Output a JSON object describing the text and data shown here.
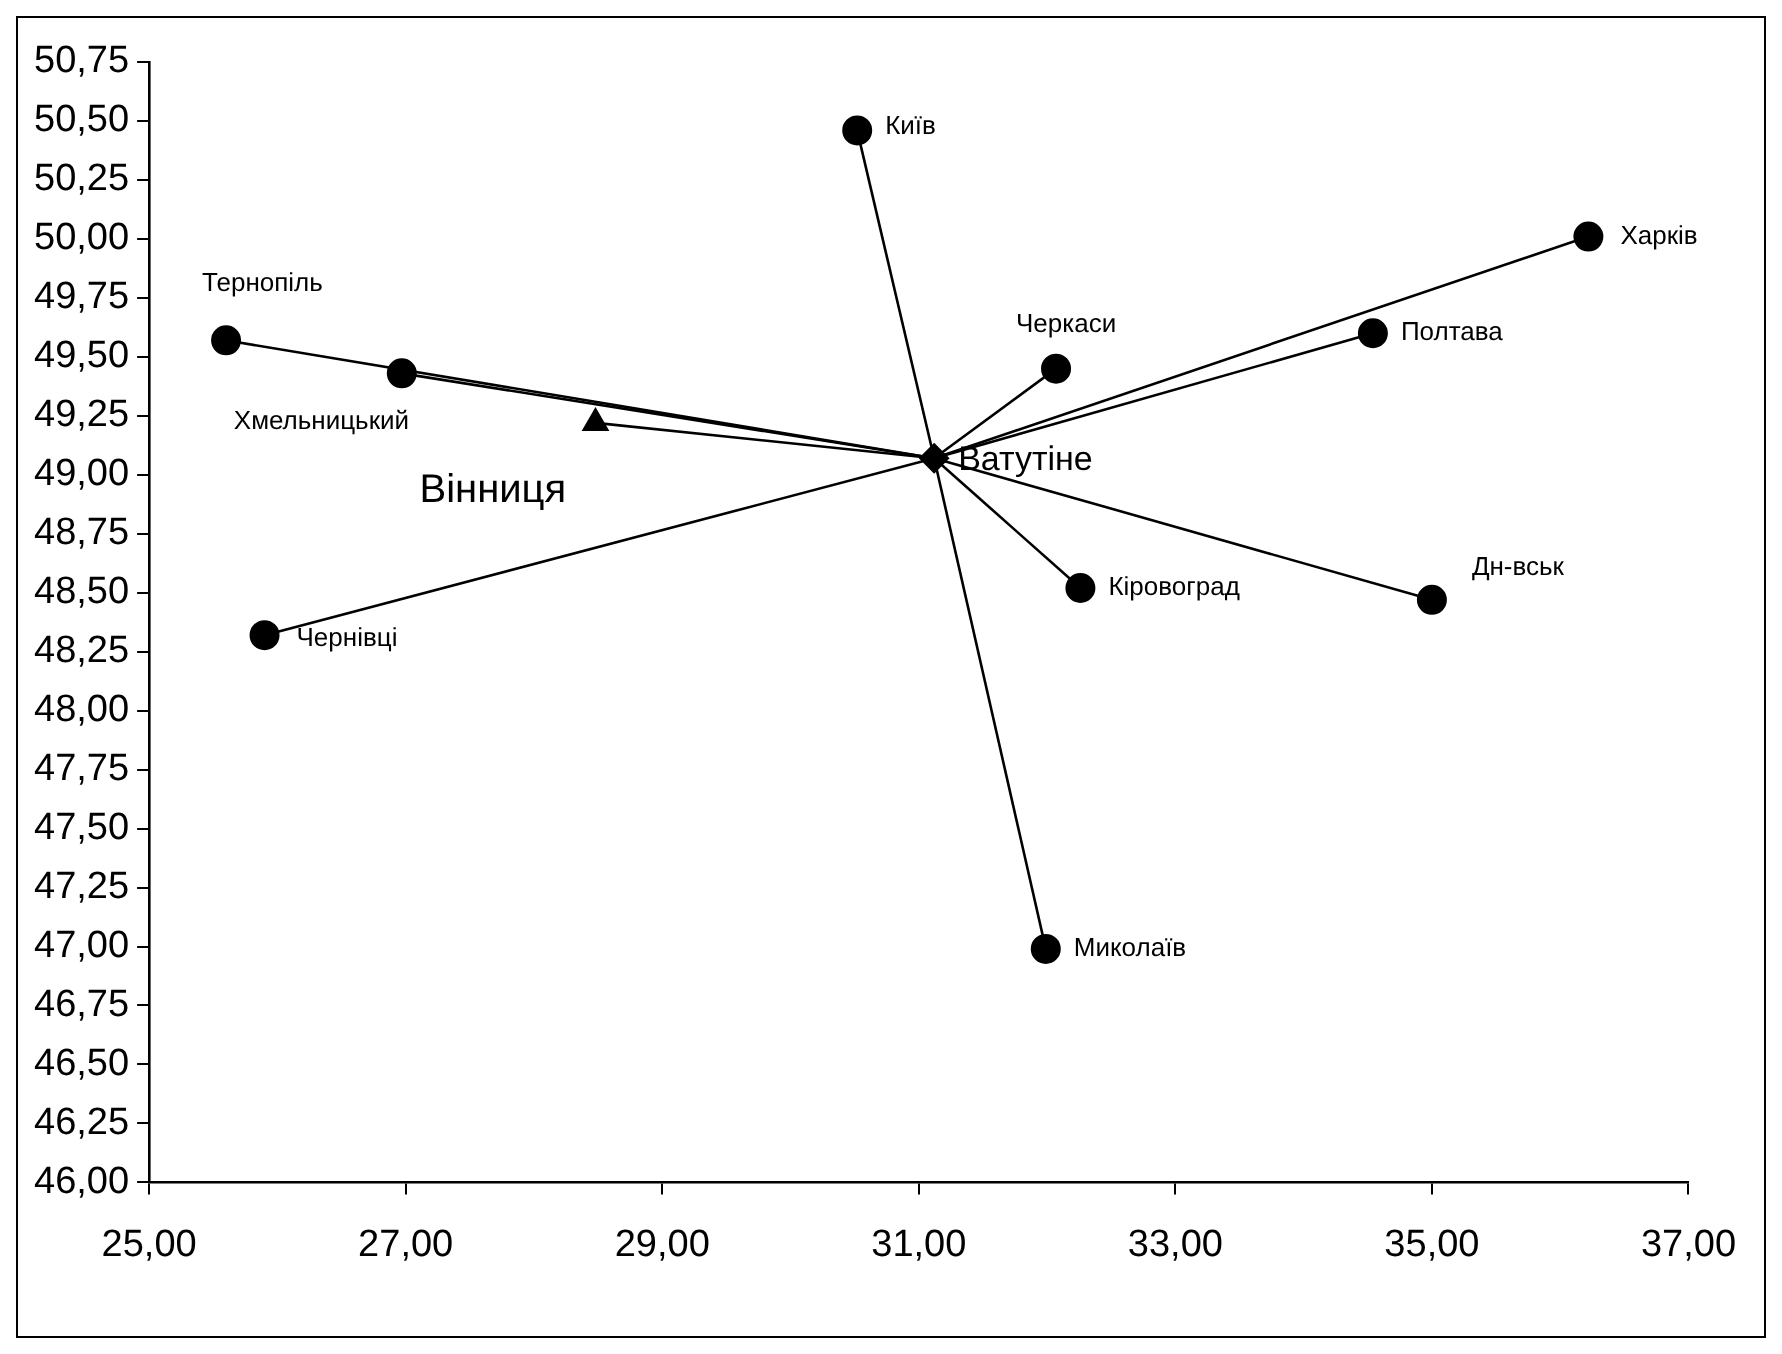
{
  "chart_data": {
    "type": "scatter",
    "xlim": [
      25,
      37
    ],
    "ylim": [
      46,
      50.75
    ],
    "xticks": [
      {
        "value": 25,
        "label": "25,00"
      },
      {
        "value": 27,
        "label": "27,00"
      },
      {
        "value": 29,
        "label": "29,00"
      },
      {
        "value": 31,
        "label": "31,00"
      },
      {
        "value": 33,
        "label": "33,00"
      },
      {
        "value": 35,
        "label": "35,00"
      },
      {
        "value": 37,
        "label": "37,00"
      }
    ],
    "yticks": [
      {
        "value": 46,
        "label": "46,00"
      },
      {
        "value": 46.25,
        "label": "46,25"
      },
      {
        "value": 46.5,
        "label": "46,50"
      },
      {
        "value": 46.75,
        "label": "46,75"
      },
      {
        "value": 47,
        "label": "47,00"
      },
      {
        "value": 47.25,
        "label": "47,25"
      },
      {
        "value": 47.5,
        "label": "47,50"
      },
      {
        "value": 47.75,
        "label": "47,75"
      },
      {
        "value": 48,
        "label": "48,00"
      },
      {
        "value": 48.25,
        "label": "48,25"
      },
      {
        "value": 48.5,
        "label": "48,50"
      },
      {
        "value": 48.75,
        "label": "48,75"
      },
      {
        "value": 49,
        "label": "49,00"
      },
      {
        "value": 49.25,
        "label": "49,25"
      },
      {
        "value": 49.5,
        "label": "49,50"
      },
      {
        "value": 49.75,
        "label": "49,75"
      },
      {
        "value": 50,
        "label": "50,00"
      },
      {
        "value": 50.25,
        "label": "50,25"
      },
      {
        "value": 50.5,
        "label": "50,50"
      },
      {
        "value": 50.75,
        "label": "50,75"
      }
    ],
    "grid": false,
    "legend": false,
    "series": [
      {
        "type": "line",
        "color": "#000000",
        "marker": "none",
        "x": [
          31.12,
          30.52
        ],
        "values": [
          49.07,
          50.46
        ]
      },
      {
        "type": "line",
        "color": "#000000",
        "marker": "none",
        "x": [
          31.12,
          36.22
        ],
        "values": [
          49.07,
          50.01
        ]
      },
      {
        "type": "line",
        "color": "#000000",
        "marker": "none",
        "x": [
          31.12,
          34.54
        ],
        "values": [
          49.07,
          49.6
        ]
      },
      {
        "type": "line",
        "color": "#000000",
        "marker": "none",
        "x": [
          31.12,
          32.07
        ],
        "values": [
          49.07,
          49.45
        ]
      },
      {
        "type": "line",
        "color": "#000000",
        "marker": "none",
        "x": [
          31.12,
          25.6
        ],
        "values": [
          49.07,
          49.57
        ]
      },
      {
        "type": "line",
        "color": "#000000",
        "marker": "none",
        "x": [
          31.12,
          26.97
        ],
        "values": [
          49.07,
          49.43
        ]
      },
      {
        "type": "line",
        "color": "#000000",
        "marker": "none",
        "x": [
          31.12,
          25.9
        ],
        "values": [
          49.07,
          48.32
        ]
      },
      {
        "type": "line",
        "color": "#000000",
        "marker": "none",
        "x": [
          31.12,
          32.26
        ],
        "values": [
          49.07,
          48.52
        ]
      },
      {
        "type": "line",
        "color": "#000000",
        "marker": "none",
        "x": [
          31.12,
          35.0
        ],
        "values": [
          49.07,
          48.47
        ]
      },
      {
        "type": "line",
        "color": "#000000",
        "marker": "none",
        "x": [
          31.12,
          31.99
        ],
        "values": [
          49.07,
          46.99
        ]
      },
      {
        "type": "line",
        "color": "#000000",
        "marker": "none",
        "x": [
          31.12,
          28.48
        ],
        "values": [
          49.07,
          49.22
        ]
      },
      {
        "type": "scatter",
        "color": "#000000",
        "marker": "circle",
        "x": [
          30.52,
          36.22,
          34.54,
          32.07,
          25.6,
          26.97,
          25.9,
          32.26,
          35.0,
          31.99
        ],
        "values": [
          50.46,
          50.01,
          49.6,
          49.45,
          49.57,
          49.43,
          48.32,
          48.52,
          48.47,
          46.99
        ]
      },
      {
        "type": "scatter",
        "color": "#000000",
        "marker": "triangle",
        "x": [
          28.48
        ],
        "values": [
          49.22
        ]
      },
      {
        "type": "scatter",
        "color": "#000000",
        "marker": "diamond",
        "x": [
          31.12
        ],
        "values": [
          49.07
        ]
      }
    ],
    "annotations": [
      {
        "text": "Київ",
        "x": 30.52,
        "y": 50.46
      },
      {
        "text": "Харків",
        "x": 36.22,
        "y": 50.01
      },
      {
        "text": "Полтава",
        "x": 34.54,
        "y": 49.6
      },
      {
        "text": "Черкаси",
        "x": 32.07,
        "y": 49.45
      },
      {
        "text": "Тернопіль",
        "x": 25.6,
        "y": 49.57
      },
      {
        "text": "Хмельницький",
        "x": 26.97,
        "y": 49.43
      },
      {
        "text": "Чернівці",
        "x": 25.9,
        "y": 48.32
      },
      {
        "text": "Кіровоград",
        "x": 32.26,
        "y": 48.52
      },
      {
        "text": "Дн-вськ",
        "x": 35.0,
        "y": 48.47
      },
      {
        "text": "Миколаїв",
        "x": 31.99,
        "y": 46.99
      },
      {
        "text": "Вінниця",
        "x": 28.48,
        "y": 49.22
      },
      {
        "text": "Ватутіне",
        "x": 31.12,
        "y": 49.07
      }
    ]
  }
}
